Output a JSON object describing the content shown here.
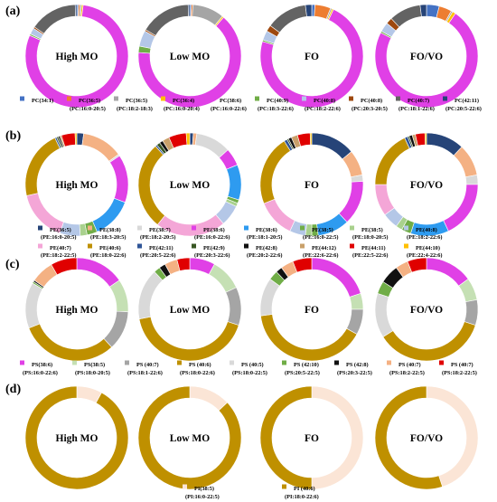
{
  "chart_data": [
    {
      "type": "pie",
      "panel": "(a)",
      "groups": [
        "High MO",
        "Low MO",
        "FO",
        "FO/VO"
      ],
      "legend": [
        {
          "l1": "PC(34:1)",
          "l2": "",
          "color": "#4472C4"
        },
        {
          "l1": "PC(36:5)",
          "l2": "(PC:16:0-20:5)",
          "color": "#ED7D31"
        },
        {
          "l1": "PC(36:5)",
          "l2": "(PC:18:2-18:3)",
          "color": "#A5A5A5"
        },
        {
          "l1": "PC(36:4)",
          "l2": "(PC:16:0-20:4)",
          "color": "#FFC000"
        },
        {
          "l1": "PC(38:6)",
          "l2": "(PC:16:0-22:6)",
          "color": "#E040E6"
        },
        {
          "l1": "PC(40:9)",
          "l2": "(PC:18:3-22:6)",
          "color": "#70AD47"
        },
        {
          "l1": "PC(40:8)",
          "l2": "(PC:18:2-22:6)",
          "color": "#B4C7E7"
        },
        {
          "l1": "PC(40:8)",
          "l2": "(PC:20:3-20:5)",
          "color": "#9E480E"
        },
        {
          "l1": "PC(40:7)",
          "l2": "(PC:18:1-22:6)",
          "color": "#636363"
        },
        {
          "l1": "PC(42:11)",
          "l2": "(PC:20:5-22:6)",
          "color": "#264478"
        }
      ],
      "values": [
        [
          0.5,
          0.5,
          0.5,
          0.5,
          80,
          0.5,
          2,
          0.5,
          15,
          0.5
        ],
        [
          0.5,
          0.5,
          10,
          0.5,
          65,
          2,
          5,
          0.5,
          16,
          0.5
        ],
        [
          1,
          5,
          0.5,
          0.5,
          73,
          0.5,
          3,
          2,
          13,
          2
        ],
        [
          4,
          4,
          0.5,
          1,
          73,
          0.5,
          3,
          2,
          10,
          2
        ]
      ]
    },
    {
      "type": "pie",
      "panel": "(b)",
      "groups": [
        "High MO",
        "Low MO",
        "FO",
        "FO/VO"
      ],
      "legend": [
        {
          "l1": "PE(36:5)",
          "l2": "(PE:16:0-20:5)",
          "color": "#264478"
        },
        {
          "l1": "PE(38:8)",
          "l2": "(PE:18:3-20:5)",
          "color": "#F4B183"
        },
        {
          "l1": "PE(38:7)",
          "l2": "(PE:18:2-20:5)",
          "color": "#D9D9D9"
        },
        {
          "l1": "PE(38:6)",
          "l2": "(PE:16:0-22:6)",
          "color": "#E040E6"
        },
        {
          "l1": "PE(38:6)",
          "l2": "(PE:18:1-20:5)",
          "color": "#2E9BF0"
        },
        {
          "l1": "PE(38:5)",
          "l2": "(PE:16:0-22:5)",
          "color": "#70AD47"
        },
        {
          "l1": "PE(38:5)",
          "l2": "(PE:18:0-20:5)",
          "color": "#A9D18E"
        },
        {
          "l1": "PE(40:8)",
          "l2": "(PE:18:2-22:6)",
          "color": "#B4C7E7"
        },
        {
          "l1": "PE(40:7)",
          "l2": "(PE:18:2-22:5)",
          "color": "#F4A6D7"
        },
        {
          "l1": "PE(40:6)",
          "l2": "(PE:18:0-22:6)",
          "color": "#BF9000"
        },
        {
          "l1": "PE(42:11)",
          "l2": "(PE:20:5-22:6)",
          "color": "#2F5597"
        },
        {
          "l1": "PE(42:9)",
          "l2": "(PE:20:3-22:6)",
          "color": "#375623"
        },
        {
          "l1": "PE(42:8)",
          "l2": "(PE:20:2-22:6)",
          "color": "#111111"
        },
        {
          "l1": "PE(44:12)",
          "l2": "(PE:22:6-22:6)",
          "color": "#C9A06A"
        },
        {
          "l1": "PE(44:11)",
          "l2": "(PE:22:5-22:6)",
          "color": "#E00000"
        },
        {
          "l1": "PE(44:10)",
          "l2": "(PE:22:4-22:6)",
          "color": "#FFC000"
        }
      ],
      "values": [
        [
          2,
          12,
          0.5,
          14,
          12,
          3,
          2,
          6,
          15,
          20,
          0.5,
          0.5,
          0.5,
          0.5,
          4,
          0.5
        ],
        [
          1,
          1,
          10,
          5,
          10,
          1,
          1,
          6,
          20,
          25,
          0.5,
          1,
          1,
          2,
          5,
          1
        ],
        [
          14,
          8,
          2,
          14,
          10,
          2,
          2,
          5,
          12,
          22,
          1,
          0.5,
          1,
          2,
          4,
          0.5
        ],
        [
          12,
          10,
          3,
          18,
          12,
          3,
          2,
          5,
          10,
          18,
          1,
          0.5,
          1,
          1,
          3,
          0.5
        ]
      ]
    },
    {
      "type": "pie",
      "panel": "(c)",
      "groups": [
        "High MO",
        "Low MO",
        "FO",
        "FO/VO"
      ],
      "legend": [
        {
          "l1": "PS(38:6)",
          "l2": "(PS:16:0-22:6)",
          "color": "#E040E6"
        },
        {
          "l1": "PS(38:5)",
          "l2": "(PS:18:0-20:5)",
          "color": "#C5E0B4"
        },
        {
          "l1": "PS (40:7)",
          "l2": "(PS:18:1-22:6)",
          "color": "#A5A5A5"
        },
        {
          "l1": "PS (40:6)",
          "l2": "(PS:18:0-22:6)",
          "color": "#BF9000"
        },
        {
          "l1": "PS (40:5)",
          "l2": "(PS:18:0-22:5)",
          "color": "#D9D9D9"
        },
        {
          "l1": "PS (42:10)",
          "l2": "(PS:20:5-22:5)",
          "color": "#70AD47"
        },
        {
          "l1": "PS (42:8)",
          "l2": "(PS:20:3-22:5)",
          "color": "#111111"
        },
        {
          "l1": "PS (40:7)",
          "l2": "(PS:18:2-22:5)",
          "color": "#F4B183"
        },
        {
          "l1": "PS (40:7)",
          "l2": "(PS:18:2-22:5)",
          "color": "#E00000"
        }
      ],
      "values": [
        [
          15,
          10,
          12,
          30,
          14,
          0.5,
          0.5,
          7,
          8
        ],
        [
          8,
          10,
          12,
          42,
          16,
          2,
          2,
          4,
          4
        ],
        [
          20,
          5,
          8,
          40,
          12,
          3,
          2,
          4,
          6
        ],
        [
          15,
          7,
          8,
          36,
          14,
          4,
          6,
          4,
          6
        ]
      ]
    },
    {
      "type": "pie",
      "panel": "(d)",
      "groups": [
        "High MO",
        "Low MO",
        "FO",
        "FO/VO"
      ],
      "legend": [
        {
          "l1": "PI(38:5)",
          "l2": "(PI:16:0-22:5)",
          "color": "#FBE5D6"
        },
        {
          "l1": "PI (40:6)",
          "l2": "(PI:18:0-22:6)",
          "color": "#BF9000"
        }
      ],
      "values": [
        [
          8,
          92
        ],
        [
          13,
          87
        ],
        [
          50,
          50
        ],
        [
          45,
          55
        ]
      ]
    }
  ]
}
